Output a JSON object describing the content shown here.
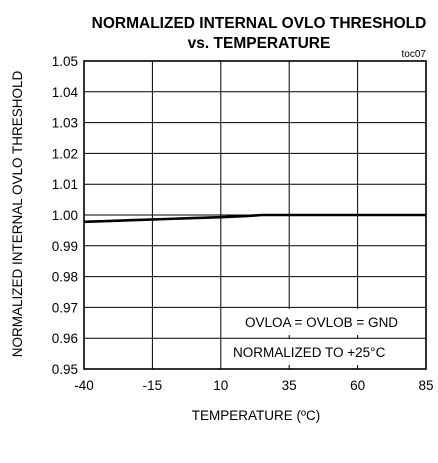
{
  "chart_data": {
    "type": "line",
    "title_line1": "NORMALIZED INTERNAL OVLO THRESHOLD",
    "title_line2": "vs. TEMPERATURE",
    "tag": "toc07",
    "xlabel": "TEMPERATURE (ºC)",
    "ylabel": "NORMALIZED INTERNAL OVLO THRESHOLD",
    "xlim": [
      -40,
      85
    ],
    "ylim": [
      0.95,
      1.05
    ],
    "x_ticks": [
      -40,
      -15,
      10,
      35,
      60,
      85
    ],
    "x_tick_labels": [
      "-40",
      "-15",
      "10",
      "35",
      "60",
      "85"
    ],
    "y_ticks": [
      0.95,
      0.96,
      0.97,
      0.98,
      0.99,
      1.0,
      1.01,
      1.02,
      1.03,
      1.04,
      1.05
    ],
    "y_tick_labels": [
      "0.95",
      "0.96",
      "0.97",
      "0.98",
      "0.99",
      "1.00",
      "1.01",
      "1.02",
      "1.03",
      "1.04",
      "1.05"
    ],
    "grid": true,
    "annotations": [
      "OVLOA = OVLOB = GND",
      "NORMALIZED TO +25°C"
    ],
    "series": [
      {
        "x": [
          -40,
          -30,
          -20,
          -10,
          0,
          10,
          20,
          25,
          35,
          45,
          60,
          70,
          85
        ],
        "y": [
          0.9978,
          0.9981,
          0.9984,
          0.9987,
          0.999,
          0.9993,
          0.9997,
          1.0,
          1.0,
          1.0,
          1.0,
          1.0,
          1.0
        ]
      }
    ]
  }
}
